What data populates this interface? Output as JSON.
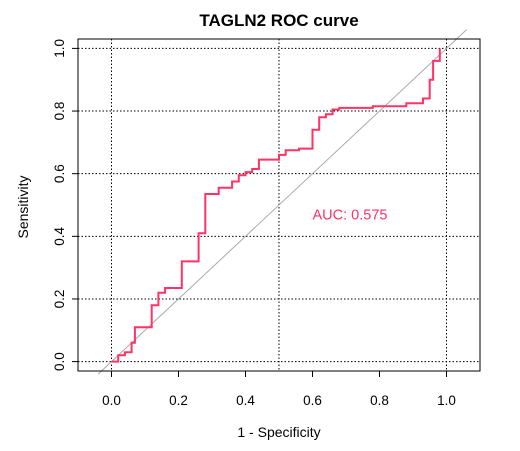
{
  "chart_data": {
    "type": "line",
    "title": "TAGLN2 ROC curve",
    "xlabel": "1 - Specificity",
    "ylabel": "Sensitivity",
    "xlim": [
      -0.1,
      1.1
    ],
    "ylim": [
      -0.03,
      1.03
    ],
    "x_ticks": [
      "0.0",
      "0.2",
      "0.4",
      "0.6",
      "0.8",
      "1.0"
    ],
    "y_ticks": [
      "0.0",
      "0.2",
      "0.4",
      "0.6",
      "0.8",
      "1.0"
    ],
    "grid": true,
    "colors": {
      "roc": "#ff3366",
      "diagonal": "#aaaaaa",
      "grid": "#000000"
    },
    "annotation": {
      "text": "AUC: 0.575",
      "x": 0.6,
      "y": 0.47
    },
    "series": [
      {
        "x": [
          0.0,
          0.01,
          0.02,
          0.02,
          0.04,
          0.04,
          0.06,
          0.06,
          0.07,
          0.07,
          0.12,
          0.12,
          0.14,
          0.14,
          0.16,
          0.16,
          0.21,
          0.21,
          0.26,
          0.26,
          0.28,
          0.28,
          0.32,
          0.32,
          0.36,
          0.36,
          0.38,
          0.38,
          0.4,
          0.4,
          0.42,
          0.42,
          0.44,
          0.44,
          0.46,
          0.46,
          0.5,
          0.5,
          0.52,
          0.52,
          0.56,
          0.56,
          0.6,
          0.6,
          0.62,
          0.62,
          0.64,
          0.64,
          0.66,
          0.66,
          0.68,
          0.68,
          0.78,
          0.78,
          0.88,
          0.88,
          0.93,
          0.93,
          0.95,
          0.95,
          0.96,
          0.96,
          0.98,
          0.98
        ],
        "y": [
          0.0,
          0.0,
          0.0,
          0.02,
          0.02,
          0.03,
          0.03,
          0.06,
          0.06,
          0.11,
          0.11,
          0.18,
          0.18,
          0.22,
          0.22,
          0.235,
          0.235,
          0.32,
          0.32,
          0.41,
          0.41,
          0.535,
          0.535,
          0.555,
          0.555,
          0.575,
          0.575,
          0.595,
          0.595,
          0.605,
          0.605,
          0.615,
          0.615,
          0.645,
          0.645,
          0.645,
          0.645,
          0.66,
          0.66,
          0.675,
          0.675,
          0.68,
          0.68,
          0.74,
          0.74,
          0.78,
          0.78,
          0.79,
          0.79,
          0.805,
          0.805,
          0.81,
          0.81,
          0.815,
          0.815,
          0.825,
          0.825,
          0.84,
          0.84,
          0.9,
          0.9,
          0.96,
          0.96,
          1.0
        ]
      }
    ]
  }
}
